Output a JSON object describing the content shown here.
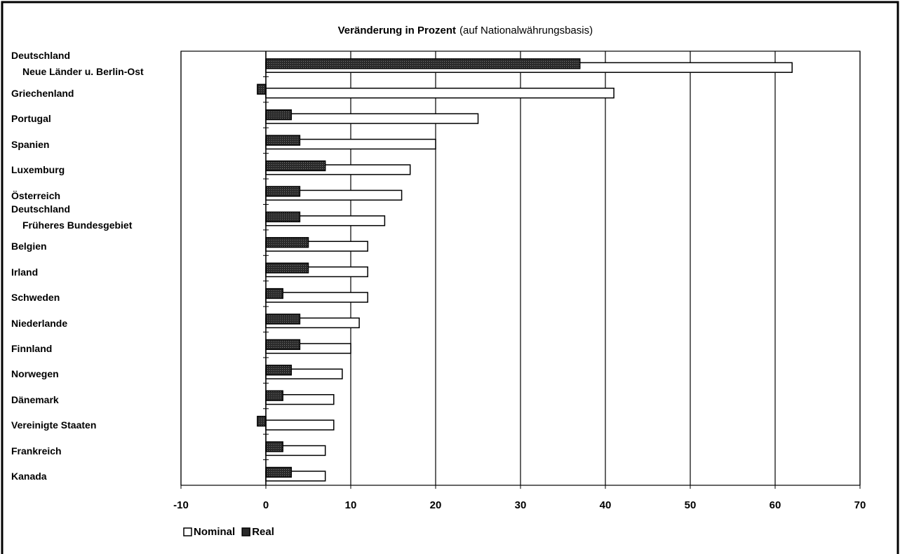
{
  "chart_data": {
    "type": "bar",
    "orientation": "horizontal",
    "title": "Veränderung in Prozent",
    "subtitle": "(auf Nationalwährungsbasis)",
    "categories": [
      "Deutschland\nNeue Länder u. Berlin-Ost",
      "Griechenland",
      "Portugal",
      "Spanien",
      "Luxemburg",
      "Österreich",
      "Deutschland\nFrüheres Bundesgebiet",
      "Belgien",
      "Irland",
      "Schweden",
      "Niederlande",
      "Finnland",
      "Norwegen",
      "Dänemark",
      "Vereinigte Staaten",
      "Frankreich",
      "Kanada"
    ],
    "series": [
      {
        "name": "Nominal",
        "color": "#ffffff",
        "values": [
          62,
          41,
          25,
          20,
          17,
          16,
          14,
          12,
          12,
          12,
          11,
          10,
          9,
          8,
          8,
          7,
          7
        ]
      },
      {
        "name": "Real",
        "color": "#2a2a2a",
        "values": [
          37,
          -1,
          3,
          4,
          7,
          4,
          4,
          5,
          5,
          2,
          4,
          4,
          3,
          2,
          -1,
          2,
          3
        ]
      }
    ],
    "xlim": [
      -10,
      70
    ],
    "xticks": [
      -10,
      0,
      10,
      20,
      30,
      40,
      50,
      60,
      70
    ],
    "grid": true,
    "legend": "bottom-left"
  }
}
